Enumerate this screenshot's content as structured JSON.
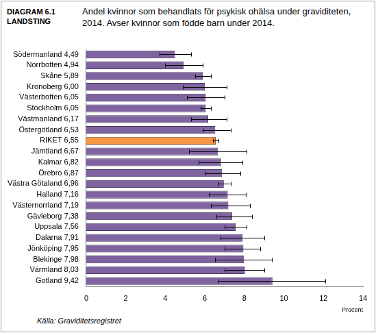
{
  "chart_data": {
    "type": "bar",
    "orientation": "horizontal",
    "title": "Andel kvinnor som behandlats för psykisk ohälsa under graviditeten, 2014.  Avser kvinnor som födde barn under 2014.",
    "subtitle": [
      "DIAGRAM 6.1",
      "LANDSTING"
    ],
    "source": "Källa: Graviditetsregistret",
    "x_label": "Procent",
    "categories": [
      "Södermanland 4,49",
      "Norrbotten 4,94",
      "Skåne 5,89",
      "Kronoberg 6,00",
      "Västerbotten 6,05",
      "Stockholm 6,05",
      "Västmanland 6,17",
      "Östergötland 6,53",
      "RIKET 6,55",
      "Jämtland 6,67",
      "Kalmar 6,82",
      "Örebro 6,87",
      "Västra Götaland 6,96",
      "Halland 7,16",
      "Västernorrland 7,19",
      "Gävleborg 7,38",
      "Uppsala 7,56",
      "Dalarna 7,91",
      "Jönköping 7,95",
      "Blekinge 7,98",
      "Värmland 8,03",
      "Gotland 9,42"
    ],
    "values": [
      4.49,
      4.94,
      5.89,
      6.0,
      6.05,
      6.05,
      6.17,
      6.53,
      6.55,
      6.67,
      6.82,
      6.87,
      6.96,
      7.16,
      7.19,
      7.38,
      7.56,
      7.91,
      7.95,
      7.98,
      8.03,
      9.42
    ],
    "error_low": [
      3.7,
      4.0,
      5.5,
      4.9,
      5.1,
      5.8,
      5.3,
      5.9,
      6.4,
      5.2,
      5.7,
      6.0,
      6.7,
      6.2,
      6.3,
      6.6,
      7.0,
      6.8,
      7.0,
      6.5,
      7.0,
      6.7
    ],
    "error_high": [
      5.3,
      5.9,
      6.3,
      7.1,
      7.0,
      6.3,
      7.1,
      7.3,
      6.7,
      8.1,
      7.9,
      7.8,
      7.3,
      8.1,
      8.3,
      8.4,
      8.1,
      9.0,
      8.8,
      9.4,
      9.0,
      12.1
    ],
    "colors": [
      "#8064a2",
      "#8064a2",
      "#8064a2",
      "#8064a2",
      "#8064a2",
      "#8064a2",
      "#8064a2",
      "#8064a2",
      "#f79646",
      "#8064a2",
      "#8064a2",
      "#8064a2",
      "#8064a2",
      "#8064a2",
      "#8064a2",
      "#8064a2",
      "#8064a2",
      "#8064a2",
      "#8064a2",
      "#8064a2",
      "#8064a2",
      "#8064a2"
    ],
    "xlim": [
      0,
      14
    ],
    "xticks": [
      0,
      2,
      4,
      6,
      8,
      10,
      12,
      14
    ],
    "grid": false
  }
}
